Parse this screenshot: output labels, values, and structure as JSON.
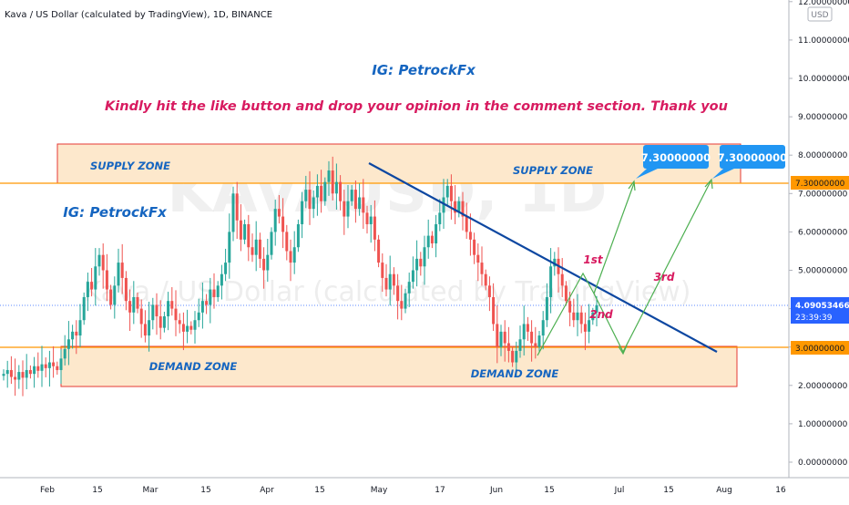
{
  "header": {
    "symbol_title": "Kava / US Dollar (calculated by TradingView), 1D, BINANCE",
    "currency_badge": "USD"
  },
  "annotations": {
    "ig_top": "IG: PetrockFx",
    "message": "Kindly hit the like button and drop your opinion in the comment section. Thank you",
    "ig_left": "IG: PetrockFx",
    "supply_zone_left": "SUPPLY ZONE",
    "supply_zone_right": "SUPPLY ZONE",
    "demand_zone_left": "DEMAND ZONE",
    "demand_zone_right": "DEMAND ZONE",
    "step_1": "1st",
    "step_2": "2nd",
    "step_3": "3rd",
    "target_1": "7.30000000",
    "target_2": "7.30000000"
  },
  "watermark": {
    "line1": "KAVAUSD, 1D",
    "line2": "Kava / US Dollar (calculated by TradingView)"
  },
  "price_axis": {
    "labels": [
      "12.00000000",
      "11.00000000",
      "10.00000000",
      "9.00000000",
      "8.00000000",
      "7.00000000",
      "6.00000000",
      "5.00000000",
      "4.00000000",
      "3.00000000",
      "2.00000000",
      "1.00000000",
      "0.00000000"
    ],
    "current_price": "4.09053466",
    "countdown": "23:39:39",
    "level_supply": "7.30000000",
    "level_demand": "3.00000000"
  },
  "time_axis": {
    "labels": [
      "Feb",
      "15",
      "Mar",
      "15",
      "Apr",
      "15",
      "May",
      "17",
      "Jun",
      "15",
      "Jul",
      "15",
      "Aug",
      "16"
    ]
  },
  "colors": {
    "up": "#26a69a",
    "down": "#ef5350",
    "trendline": "#0d47a1",
    "zone_fill": "#fde8cc",
    "zone_border": "#e53935",
    "level_line": "#ff9800",
    "projection": "#4caf50",
    "target_badge": "#2196f3",
    "price_badge": "#2962ff",
    "text_blue": "#1565c0",
    "text_crimson": "#d81b60"
  },
  "chart_data": {
    "type": "candlestick",
    "title": "Kava / US Dollar (calculated by TradingView), 1D, BINANCE",
    "y_unit": "USD",
    "ylim": [
      -0.2,
      12.2
    ],
    "x_range": [
      "2021-01-16",
      "2021-08-28"
    ],
    "x_tick_labels": [
      "Feb",
      "15",
      "Mar",
      "15",
      "Apr",
      "15",
      "May",
      "17",
      "Jun",
      "15",
      "Jul",
      "15",
      "Aug",
      "16"
    ],
    "candles_date_range": [
      "2021-01-16",
      "2021-06-17"
    ],
    "candles_close": [
      2.3,
      2.4,
      2.22,
      2.15,
      2.35,
      2.2,
      2.4,
      2.3,
      2.5,
      2.38,
      2.55,
      2.45,
      2.6,
      2.5,
      2.4,
      2.7,
      2.95,
      3.2,
      3.4,
      3.3,
      3.7,
      4.3,
      4.7,
      4.5,
      5.1,
      5.4,
      5.0,
      4.5,
      4.1,
      4.6,
      5.2,
      4.8,
      4.2,
      3.9,
      4.3,
      4.0,
      3.6,
      3.3,
      3.7,
      4.1,
      3.8,
      3.5,
      3.8,
      4.2,
      4.0,
      3.7,
      3.6,
      3.4,
      3.55,
      3.45,
      3.7,
      3.9,
      4.2,
      4.1,
      4.5,
      4.3,
      4.6,
      4.9,
      5.2,
      6.0,
      7.0,
      6.3,
      5.8,
      6.2,
      5.6,
      5.4,
      5.8,
      5.3,
      5.0,
      5.4,
      6.0,
      6.6,
      6.4,
      6.0,
      5.5,
      5.2,
      5.6,
      6.2,
      6.8,
      7.1,
      6.6,
      6.9,
      7.2,
      6.8,
      7.3,
      7.6,
      7.0,
      7.3,
      6.8,
      6.4,
      6.8,
      7.1,
      6.6,
      6.9,
      6.5,
      6.2,
      6.4,
      5.8,
      5.2,
      4.8,
      4.5,
      4.9,
      4.6,
      4.2,
      4.0,
      4.4,
      4.7,
      5.0,
      5.3,
      5.1,
      5.6,
      5.9,
      5.7,
      6.2,
      6.5,
      6.9,
      7.2,
      6.8,
      6.5,
      6.8,
      6.4,
      6.0,
      5.8,
      5.4,
      5.2,
      4.9,
      4.6,
      4.3,
      3.6,
      3.0,
      3.4,
      3.1,
      2.9,
      2.6,
      2.9,
      3.2,
      3.6,
      3.4,
      3.1,
      3.0,
      3.3,
      3.7,
      4.3,
      5.1,
      5.3,
      4.9,
      4.6,
      4.2,
      3.9,
      3.7,
      3.9,
      3.6,
      3.4,
      3.7,
      3.9,
      4.09
    ],
    "last_price": 4.09053466,
    "levels": [
      {
        "label": "7.30000000",
        "value": 7.3
      },
      {
        "label": "3.00000000",
        "value": 3.0
      }
    ],
    "zones": [
      {
        "label": "SUPPLY ZONE",
        "from": 7.3,
        "to": 8.3
      },
      {
        "label": "DEMAND ZONE",
        "from": 2.0,
        "to": 3.0
      }
    ],
    "trendline": {
      "start": [
        "2021-04-29",
        7.8
      ],
      "end": [
        "2021-07-27",
        2.8
      ]
    },
    "projection_path": [
      [
        "2021-06-10",
        2.9
      ],
      [
        "2021-06-23",
        4.8
      ],
      [
        "2021-06-26",
        4.3
      ],
      [
        "2021-07-11",
        2.9
      ],
      [
        "2021-07-27",
        7.3
      ]
    ],
    "projection_target_1": {
      "date": "2021-07-07",
      "value": 7.3
    }
  }
}
